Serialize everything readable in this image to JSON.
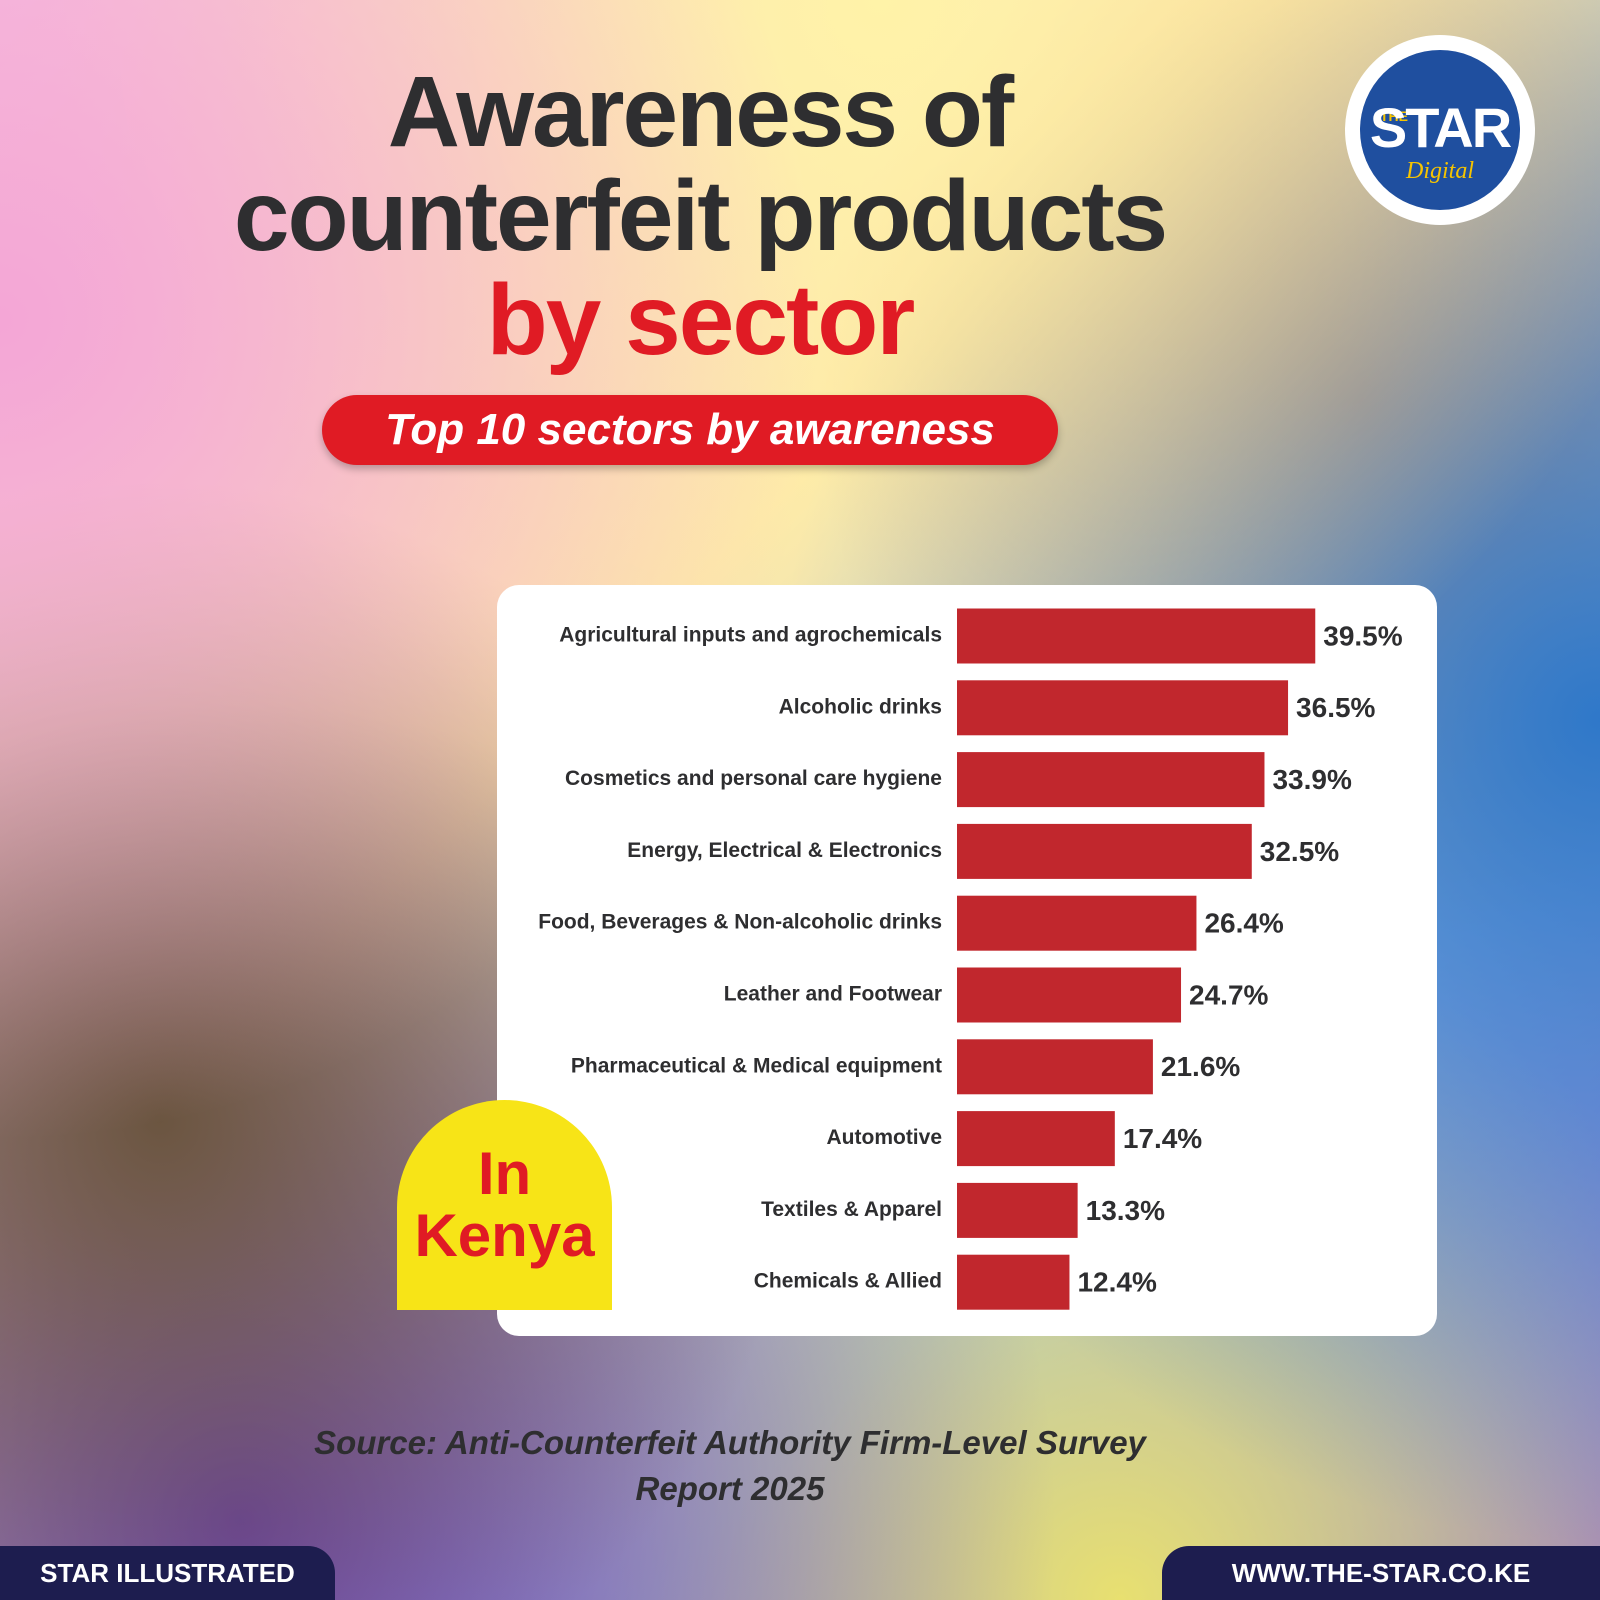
{
  "brand": {
    "prefix": "THE",
    "name": "STAR",
    "suffix": "Digital"
  },
  "chart_data": {
    "type": "bar",
    "orientation": "horizontal",
    "title": "Awareness of counterfeit products",
    "title_emphasis": "by sector",
    "subtitle": "Top 10 sectors by awareness",
    "categories": [
      "Agricultural inputs and agrochemicals",
      "Alcoholic drinks",
      "Cosmetics and personal care hygiene",
      "Energy, Electrical & Electronics",
      "Food, Beverages & Non-alcoholic drinks",
      "Leather and Footwear",
      "Pharmaceutical & Medical equipment",
      "Automotive",
      "Textiles & Apparel",
      "Chemicals & Allied"
    ],
    "values": [
      39.5,
      36.5,
      33.9,
      32.5,
      26.4,
      24.7,
      21.6,
      17.4,
      13.3,
      12.4
    ],
    "value_labels": [
      "39.5%",
      "36.5%",
      "33.9%",
      "32.5%",
      "26.4%",
      "24.7%",
      "21.6%",
      "17.4%",
      "13.3%",
      "12.4%"
    ],
    "color": "#c1272d"
  },
  "badge": "In Kenya",
  "source": "Source: Anti-Counterfeit Authority Firm-Level Survey Report 2025",
  "footer_left": "STAR ILLUSTRATED",
  "footer_right": "WWW.THE-STAR.CO.KE"
}
